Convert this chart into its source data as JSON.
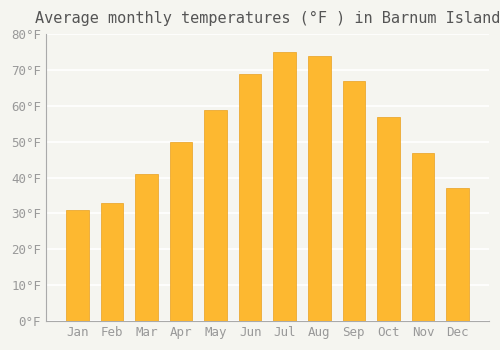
{
  "title": "Average monthly temperatures (°F ) in Barnum Island",
  "months": [
    "Jan",
    "Feb",
    "Mar",
    "Apr",
    "May",
    "Jun",
    "Jul",
    "Aug",
    "Sep",
    "Oct",
    "Nov",
    "Dec"
  ],
  "values": [
    31,
    33,
    41,
    50,
    59,
    69,
    75,
    74,
    67,
    57,
    47,
    37
  ],
  "bar_color": "#FDB830",
  "bar_edge_color": "#E8A020",
  "background_color": "#F5F5F0",
  "grid_color": "#FFFFFF",
  "ylim": [
    0,
    80
  ],
  "yticks": [
    0,
    10,
    20,
    30,
    40,
    50,
    60,
    70,
    80
  ],
  "ytick_labels": [
    "0°F",
    "10°F",
    "20°F",
    "30°F",
    "40°F",
    "50°F",
    "60°F",
    "70°F",
    "80°F"
  ],
  "title_fontsize": 11,
  "tick_fontsize": 9,
  "tick_color": "#999999",
  "axis_color": "#AAAAAA"
}
